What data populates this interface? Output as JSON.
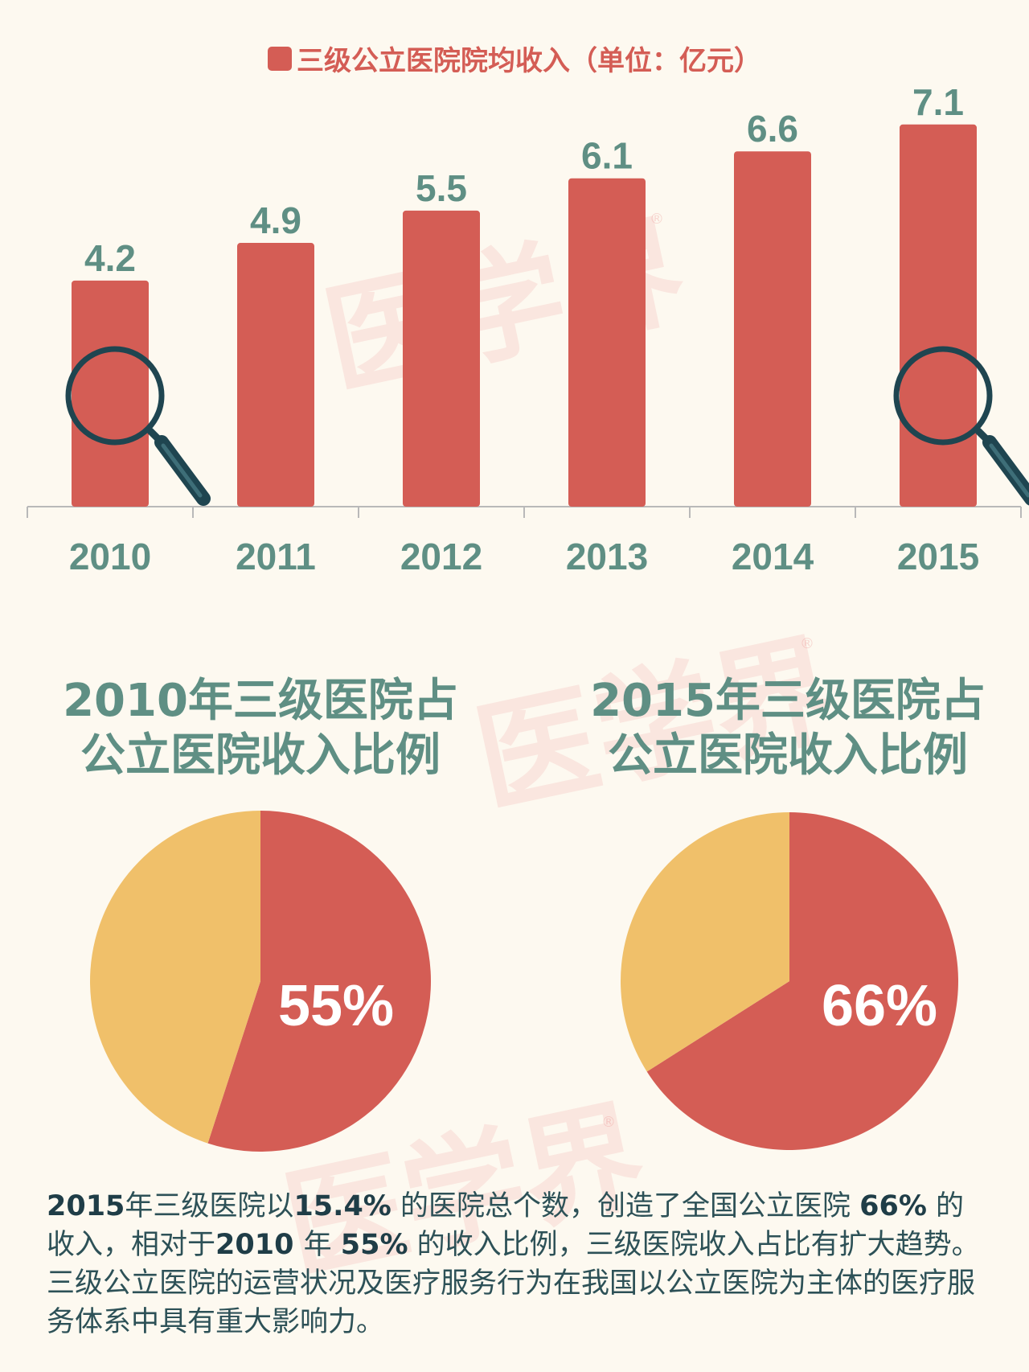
{
  "chart_data": [
    {
      "type": "bar",
      "legend": "三级公立医院院均收入（单位：亿元）",
      "categories": [
        "2010",
        "2011",
        "2012",
        "2013",
        "2014",
        "2015"
      ],
      "values": [
        4.2,
        4.9,
        5.5,
        6.1,
        6.6,
        7.1
      ],
      "data_labels": [
        "4.2",
        "4.9",
        "5.5",
        "6.1",
        "6.6",
        "7.1"
      ],
      "ylim": [
        0,
        7.5
      ],
      "bar_color": "#d45d55",
      "label_color": "#5f8f84",
      "magnifier_icons": [
        "magnifier-icon-2010",
        "magnifier-icon-2015"
      ]
    },
    {
      "type": "pie",
      "title_lines": [
        "2010年三级医院占",
        "公立医院收入比例"
      ],
      "slices": [
        {
          "value": 55,
          "label": "55%",
          "color": "#d45d55"
        },
        {
          "value": 45,
          "color": "#f0c06a"
        }
      ]
    },
    {
      "type": "pie",
      "title_lines": [
        "2015年三级医院占",
        "公立医院收入比例"
      ],
      "slices": [
        {
          "value": 66,
          "label": "66%",
          "color": "#d45d55"
        },
        {
          "value": 34,
          "color": "#f0c06a"
        }
      ]
    }
  ],
  "watermark": "医学界",
  "watermark_mark": "®",
  "footer": {
    "p1": "2015",
    "p2": "年三级医院以",
    "p3": "15.4%",
    "p4": " 的医院总个数，创造了全国公立医院 ",
    "p5": "66%",
    "p6": " 的收入，相对于",
    "p7": "2010 ",
    "p8": "年 ",
    "p9": "55%",
    "p10": " 的收入比例，三级医院收入占比有扩大趋势。三级公立医院的运营状况及医疗服务行为在我国以公立医院为主体的医疗服务体系中具有重大影响力。"
  }
}
